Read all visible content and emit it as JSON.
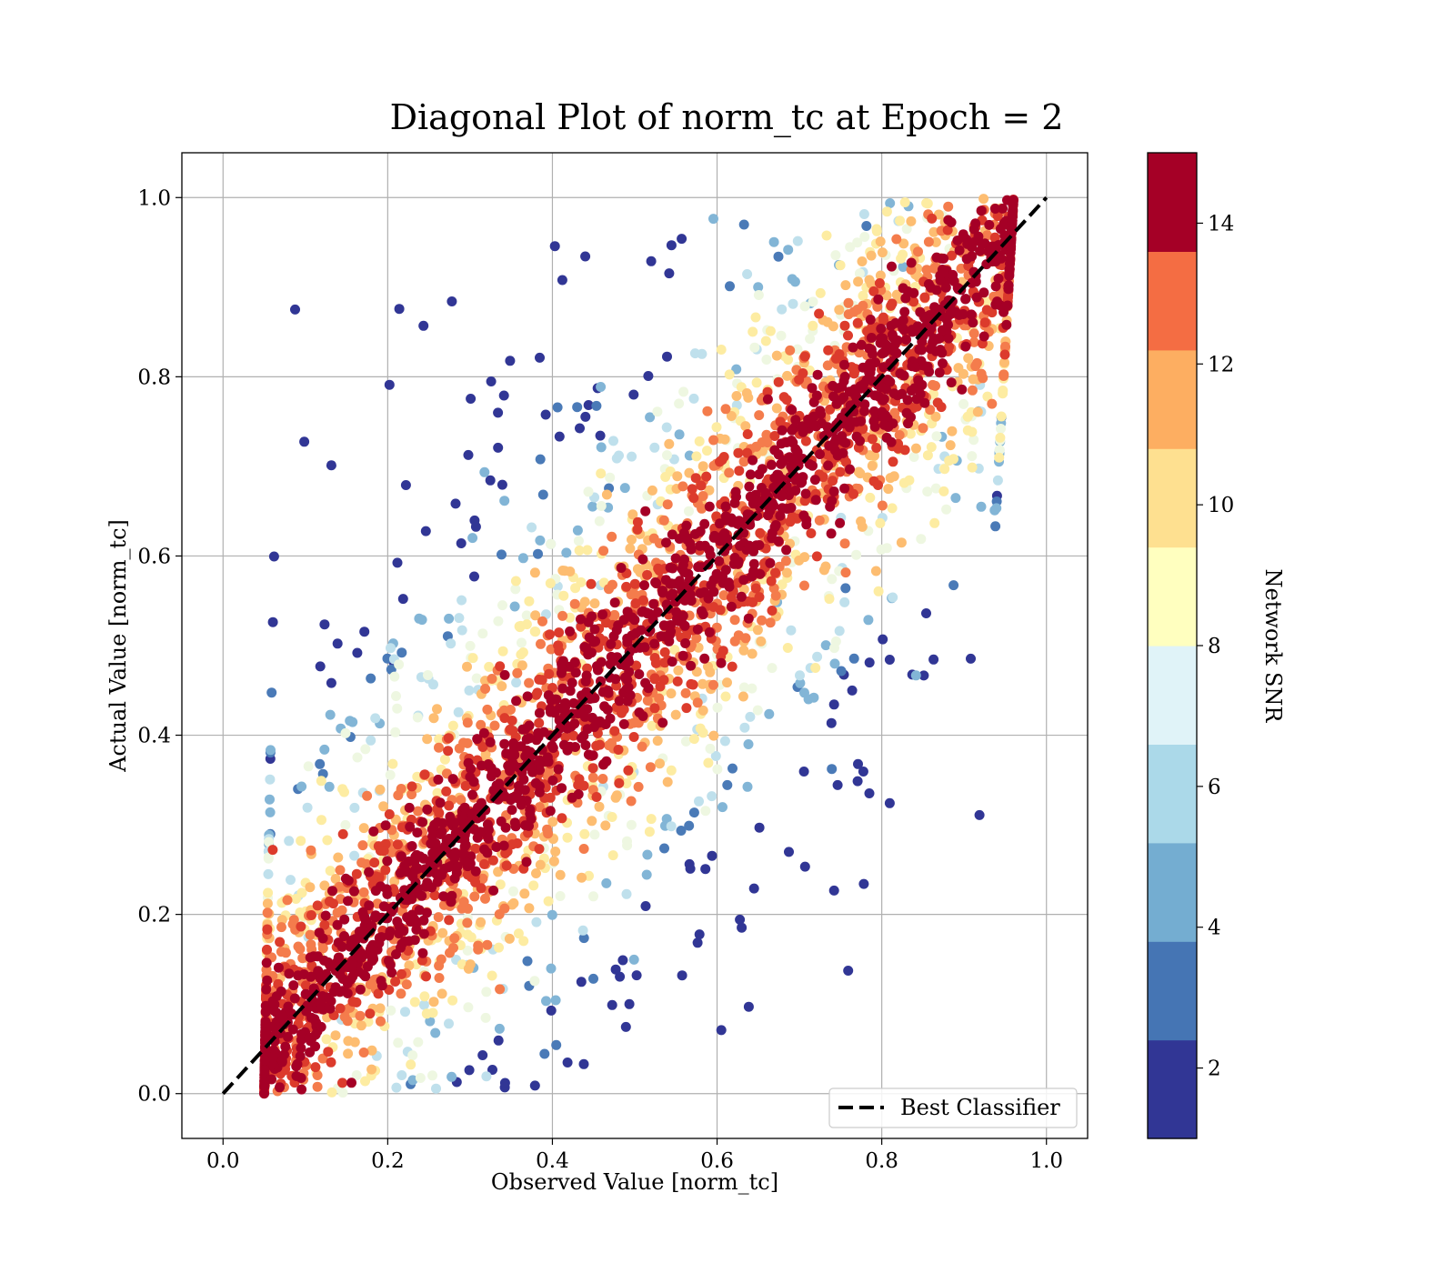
{
  "chart_data": {
    "type": "scatter",
    "title": "Diagonal Plot of norm_tc at Epoch = 2",
    "xlabel": "Observed Value [norm_tc]",
    "ylabel": "Actual Value [norm_tc]",
    "xlim": [
      -0.05,
      1.05
    ],
    "ylim": [
      -0.05,
      1.05
    ],
    "x_ticks": [
      "0.0",
      "0.2",
      "0.4",
      "0.6",
      "0.8",
      "1.0"
    ],
    "y_ticks": [
      "0.0",
      "0.2",
      "0.4",
      "0.6",
      "0.8",
      "1.0"
    ],
    "grid": true,
    "reference_line": {
      "name": "Best Classifier",
      "x": [
        0,
        1
      ],
      "y": [
        0,
        1
      ],
      "style": "dashed",
      "color": "#000000"
    },
    "legend": {
      "entries": [
        "Best Classifier"
      ],
      "position": "lower right"
    },
    "colorbar": {
      "label": "Network SNR",
      "range": [
        1,
        15
      ],
      "ticks": [
        "2",
        "4",
        "6",
        "8",
        "10",
        "12",
        "14"
      ],
      "bands": [
        "#313695",
        "#4575b4",
        "#74add1",
        "#abd9e9",
        "#e0f3f8",
        "#ffffbf",
        "#fee090",
        "#fdae61",
        "#f46d43",
        "#a50026"
      ],
      "colors": [
        "#313695",
        "#4a7ab7",
        "#82b5d6",
        "#bfe0ec",
        "#eef7e1",
        "#fdeca2",
        "#fdbd71",
        "#f47c4c",
        "#dc3b2c",
        "#a50026"
      ]
    },
    "point_distribution": {
      "note": "Approximate aggregate; high-SNR points concentrate along the diagonal band, low-SNR points scatter toward upper-left and lower-right.",
      "x_range_observed": [
        0.05,
        0.96
      ],
      "y_range_actual": [
        0.0,
        1.0
      ]
    }
  }
}
